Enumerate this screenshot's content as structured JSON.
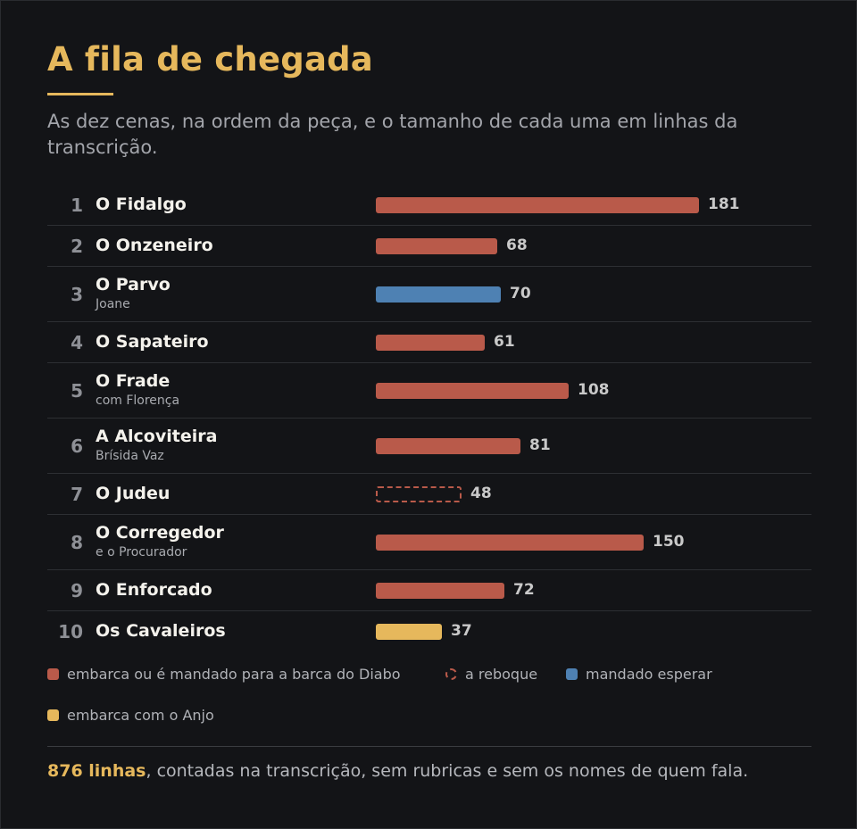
{
  "title": "A fila de chegada",
  "subtitle": "As dez cenas, na ordem da peça, e o tamanho de cada uma em linhas da transcrição.",
  "colors": {
    "accent": "#e6b85c",
    "diabo": "#b95a4a",
    "esperar": "#4e81b3",
    "anjo": "#e6b85c",
    "reboque_border": "#b95a4a"
  },
  "chart_data": {
    "type": "bar",
    "orientation": "horizontal",
    "unit": "linhas",
    "categories": [
      "O Fidalgo",
      "O Onzeneiro",
      "O Parvo",
      "O Sapateiro",
      "O Frade",
      "A Alcoviteira",
      "O Judeu",
      "O Corregedor",
      "O Enforcado",
      "Os Cavaleiros"
    ],
    "rows": [
      {
        "n": "1",
        "name": "O Fidalgo",
        "sub": "",
        "value": 181,
        "cat": "diabo"
      },
      {
        "n": "2",
        "name": "O Onzeneiro",
        "sub": "",
        "value": 68,
        "cat": "diabo"
      },
      {
        "n": "3",
        "name": "O Parvo",
        "sub": "Joane",
        "value": 70,
        "cat": "esperar"
      },
      {
        "n": "4",
        "name": "O Sapateiro",
        "sub": "",
        "value": 61,
        "cat": "diabo"
      },
      {
        "n": "5",
        "name": "O Frade",
        "sub": "com Florença",
        "value": 108,
        "cat": "diabo"
      },
      {
        "n": "6",
        "name": "A Alcoviteira",
        "sub": "Brísida Vaz",
        "value": 81,
        "cat": "diabo"
      },
      {
        "n": "7",
        "name": "O Judeu",
        "sub": "",
        "value": 48,
        "cat": "reboque"
      },
      {
        "n": "8",
        "name": "O Corregedor",
        "sub": "e o Procurador",
        "value": 150,
        "cat": "diabo"
      },
      {
        "n": "9",
        "name": "O Enforcado",
        "sub": "",
        "value": 72,
        "cat": "diabo"
      },
      {
        "n": "10",
        "name": "Os Cavaleiros",
        "sub": "",
        "value": 37,
        "cat": "anjo"
      }
    ],
    "legend": [
      {
        "cat": "diabo",
        "label": "embarca ou é mandado para a barca do Diabo"
      },
      {
        "cat": "reboque",
        "label": "a reboque"
      },
      {
        "cat": "esperar",
        "label": "mandado esperar"
      },
      {
        "cat": "anjo",
        "label": "embarca com o Anjo"
      }
    ]
  },
  "footnote": {
    "highlight": "876 linhas",
    "rest": ", contadas na transcrição, sem rubricas e sem os nomes de quem fala."
  }
}
